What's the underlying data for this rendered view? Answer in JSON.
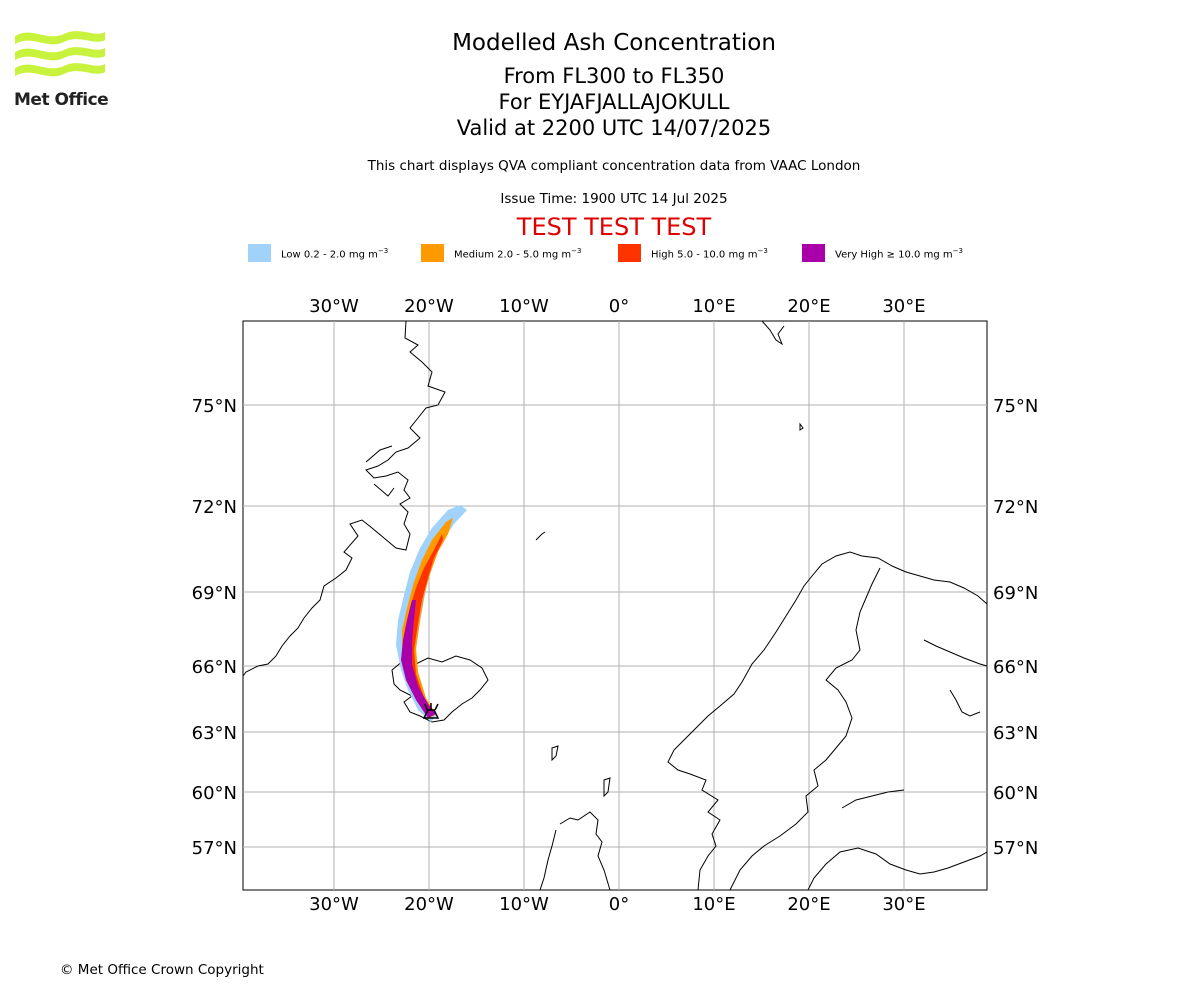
{
  "logo": {
    "text": "Met Office",
    "icon": "met-office-wave-logo",
    "color": "#c8f23c"
  },
  "title": {
    "line1": "Modelled Ash Concentration",
    "line2": "From FL300 to FL350",
    "line3": "For EYJAFJALLAJOKULL",
    "line4": "Valid at 2200 UTC 14/07/2025"
  },
  "subtitle": "This chart displays QVA compliant concentration data from VAAC London",
  "issue_time": "Issue Time: 1900 UTC 14 Jul 2025",
  "test_banner": "TEST TEST TEST",
  "test_color": "#e00000",
  "legend": [
    {
      "label": "Low 0.2 - 2.0 mg m",
      "color": "#a0d2fa"
    },
    {
      "label": "Medium 2.0 - 5.0 mg m",
      "color": "#ff9900"
    },
    {
      "label": "High 5.0 - 10.0 mg m",
      "color": "#ff3300"
    },
    {
      "label": "Very High ≥ 10.0 mg m",
      "color": "#aa00aa"
    }
  ],
  "legend_unit_exp": "−3",
  "map": {
    "lon_ticks": [
      "30°W",
      "20°W",
      "10°W",
      "0°",
      "10°E",
      "20°E",
      "30°E"
    ],
    "lat_ticks": [
      "75°N",
      "72°N",
      "69°N",
      "66°N",
      "63°N",
      "60°N",
      "57°N"
    ],
    "volcano": "EYJAFJALLAJOKULL",
    "volcano_marker": "volcano-icon"
  },
  "copyright": "© Met Office Crown Copyright"
}
